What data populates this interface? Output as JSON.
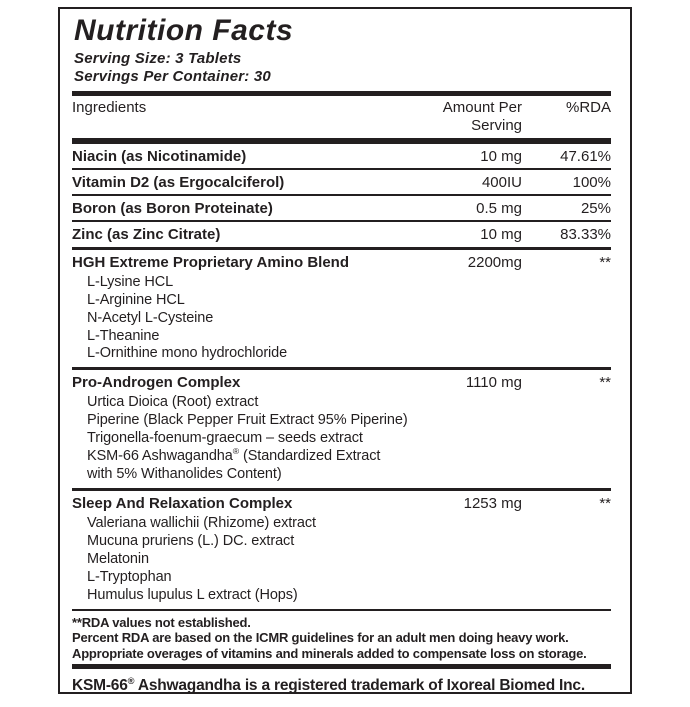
{
  "label": {
    "title": "Nutrition Facts",
    "serving_size": "Serving Size: 3 Tablets",
    "servings_per_container": "Servings Per Container: 30",
    "columns": {
      "ingredients": "Ingredients",
      "amount": "Amount Per Serving",
      "rda": "%RDA"
    },
    "rows": [
      {
        "name": "Niacin (as Nicotinamide)",
        "amount": "10 mg",
        "rda": "47.61%"
      },
      {
        "name": "Vitamin D2 (as Ergocalciferol)",
        "amount": "400IU",
        "rda": "100%"
      },
      {
        "name": "Boron (as Boron Proteinate)",
        "amount": "0.5 mg",
        "rda": "25%"
      },
      {
        "name": "Zinc (as Zinc Citrate)",
        "amount": "10 mg",
        "rda": "83.33%"
      }
    ],
    "blends": [
      {
        "name": "HGH Extreme Proprietary Amino Blend",
        "amount": "2200mg",
        "rda": "**",
        "components": [
          "L-Lysine HCL",
          "L-Arginine HCL",
          "N-Acetyl L-Cysteine",
          "L-Theanine",
          "L-Ornithine mono hydrochloride"
        ]
      },
      {
        "name": "Pro-Androgen Complex",
        "amount": "1110 mg",
        "rda": "**",
        "components": [
          "Urtica Dioica (Root) extract",
          "Piperine (Black Pepper Fruit Extract 95% Piperine)",
          "Trigonella-foenum-graecum – seeds extract",
          "KSM-66 Ashwagandha® (Standardized Extract",
          "with 5% Withanolides Content)"
        ]
      },
      {
        "name": "Sleep And Relaxation Complex",
        "amount": "1253 mg",
        "rda": "**",
        "components": [
          "Valeriana wallichii (Rhizome) extract",
          "Mucuna pruriens (L.) DC. extract",
          "Melatonin",
          "L-Tryptophan",
          "Humulus lupulus L extract (Hops)"
        ]
      }
    ],
    "footnotes": [
      "**RDA values not established.",
      "Percent RDA are based on the ICMR guidelines for an adult men doing heavy work.",
      "Appropriate overages of vitamins and minerals added to compensate loss on storage."
    ],
    "trademark": "KSM-66®  Ashwagandha is a registered trademark of Ixoreal Biomed Inc.",
    "colors": {
      "text": "#231f20",
      "background": "#ffffff"
    }
  }
}
